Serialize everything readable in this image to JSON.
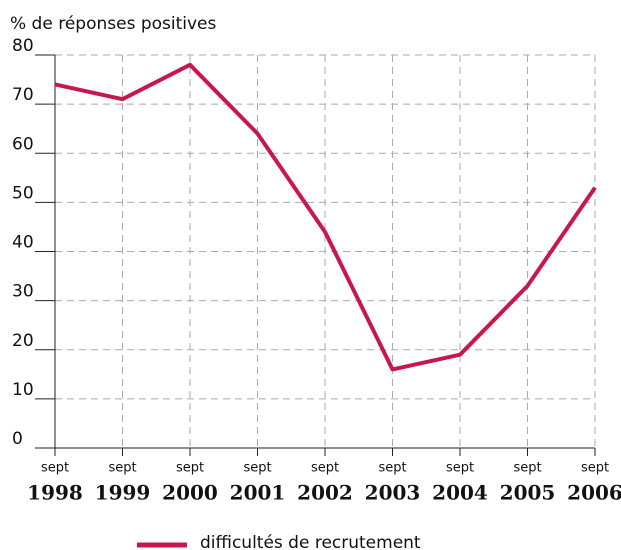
{
  "chart_data": {
    "type": "line",
    "y_axis_label": "% de réponses positives",
    "categories": [
      [
        "sept",
        "1998"
      ],
      [
        "sept",
        "1999"
      ],
      [
        "sept",
        "2000"
      ],
      [
        "sept",
        "2001"
      ],
      [
        "sept",
        "2002"
      ],
      [
        "sept",
        "2003"
      ],
      [
        "sept",
        "2004"
      ],
      [
        "sept",
        "2005"
      ],
      [
        "sept",
        "2006"
      ]
    ],
    "series": [
      {
        "name": "difficultés de recrutement",
        "color": "#c8174a",
        "values": [
          74,
          71,
          78,
          64,
          44,
          16,
          19,
          33,
          53
        ]
      }
    ],
    "ylim": [
      0,
      80
    ],
    "yticks": [
      0,
      10,
      20,
      30,
      40,
      50,
      60,
      70,
      80
    ],
    "grid": true,
    "legend": "bottom"
  }
}
